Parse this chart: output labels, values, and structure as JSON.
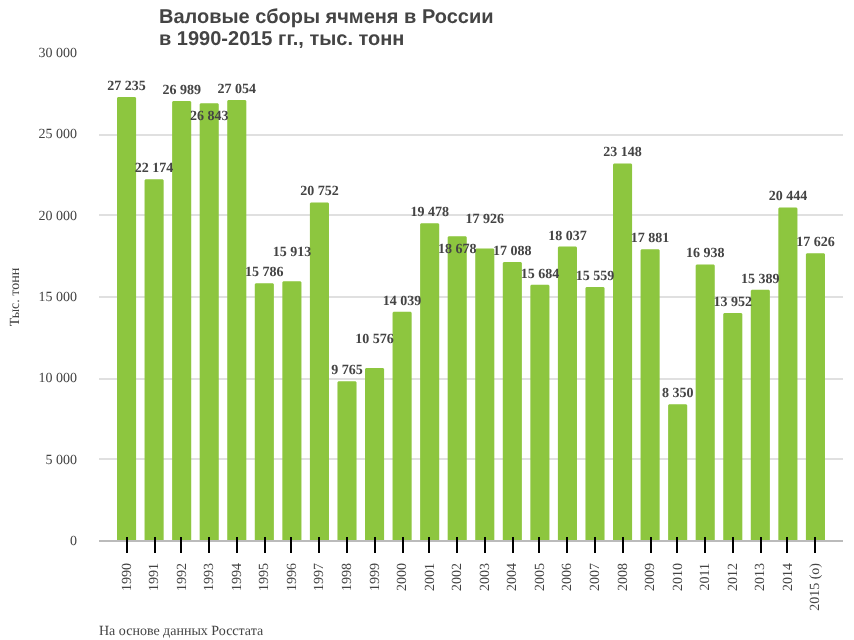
{
  "chart_data": {
    "type": "bar",
    "title": "Валовые сборы ячменя в России\nв 1990-2015 гг., тыс. тонн",
    "ylabel": "Тыс. тонн",
    "categories": [
      "1990",
      "1991",
      "1992",
      "1993",
      "1994",
      "1995",
      "1996",
      "1997",
      "1998",
      "1999",
      "2000",
      "2001",
      "2002",
      "2003",
      "2004",
      "2005",
      "2006",
      "2007",
      "2008",
      "2009",
      "2010",
      "2011",
      "2012",
      "2013",
      "2014",
      "2015 (о)"
    ],
    "values": [
      27235,
      22174,
      26989,
      26843,
      27054,
      15786,
      15913,
      20752,
      9765,
      10576,
      14039,
      19478,
      18678,
      17926,
      17088,
      15684,
      18037,
      15559,
      23148,
      17881,
      8350,
      16938,
      13952,
      15389,
      20444,
      17626
    ],
    "value_labels": [
      "27 235",
      "22 174",
      "26 989",
      "26 843",
      "27 054",
      "15 786",
      "15 913",
      "20 752",
      "9 765",
      "10 576",
      "14 039",
      "19 478",
      "18 678",
      "17 926",
      "17 088",
      "15 684",
      "18 037",
      "15 559",
      "23 148",
      "17 881",
      "8 350",
      "16 938",
      "13 952",
      "15 389",
      "20 444",
      "17 626"
    ],
    "color": "#8dc63f",
    "ylim": [
      0,
      30000
    ],
    "yticks": [
      0,
      {
        "value": 5000,
        "label": "5 000"
      },
      {
        "value": 10000,
        "label": "10 000"
      },
      {
        "value": 15000,
        "label": "15 000"
      },
      {
        "value": 20000,
        "label": "20 000"
      },
      {
        "value": 25000,
        "label": "25 000"
      },
      {
        "value": 30000,
        "label": "30 000"
      }
    ],
    "grid": "y",
    "annotations": [
      "На основе данных Росстата"
    ]
  }
}
